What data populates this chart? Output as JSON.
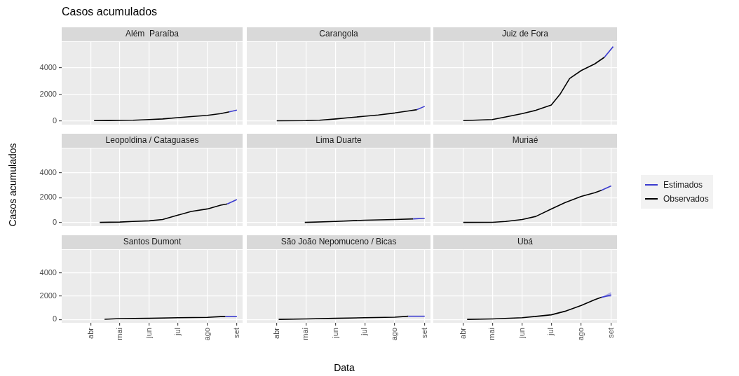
{
  "chart_data": [
    {
      "type": "line",
      "title": "Além  Paraíba",
      "annotations": [
        "Casos acumulados"
      ],
      "xlim": [
        "--03-01",
        "--09-07"
      ],
      "ylim": [
        -280,
        5950
      ],
      "yticks": [
        0,
        2000,
        4000
      ],
      "xticks": [
        {
          "value": "--04-01",
          "label": null
        },
        {
          "value": "--05-01",
          "label": null
        },
        {
          "value": "--06-01",
          "label": null
        },
        {
          "value": "--07-01",
          "label": null
        },
        {
          "value": "--08-01",
          "label": null
        },
        {
          "value": "--09-01",
          "label": null
        }
      ],
      "grid": true,
      "tick_labels": "y",
      "series": [
        {
          "color": "#3b3bcf",
          "x": [
            "--08-24",
            "--09-01"
          ],
          "values": [
            680,
            820
          ]
        },
        {
          "color": "#000000",
          "x": [
            "--04-04",
            "--04-20",
            "--05-01",
            "--05-15",
            "--06-01",
            "--06-15",
            "--07-01",
            "--07-15",
            "--08-01",
            "--08-15",
            "--08-24"
          ],
          "values": [
            20,
            30,
            40,
            50,
            100,
            150,
            250,
            330,
            420,
            550,
            680
          ]
        }
      ]
    },
    {
      "type": "line",
      "title": "Carangola",
      "xlim": [
        "--03-01",
        "--09-07"
      ],
      "ylim": [
        -280,
        5950
      ],
      "yticks": [
        {
          "value": 0,
          "label": null
        },
        {
          "value": 2000,
          "label": null
        },
        {
          "value": 4000,
          "label": null
        }
      ],
      "xticks": [
        {
          "value": "--04-01",
          "label": null
        },
        {
          "value": "--05-01",
          "label": null
        },
        {
          "value": "--06-01",
          "label": null
        },
        {
          "value": "--07-01",
          "label": null
        },
        {
          "value": "--08-01",
          "label": null
        },
        {
          "value": "--09-01",
          "label": null
        }
      ],
      "grid": true,
      "tick_labels": false,
      "series": [
        {
          "color": "#3b3bcf",
          "x": [
            "--08-24",
            "--09-01"
          ],
          "values": [
            850,
            1100
          ]
        },
        {
          "color": "#000000",
          "x": [
            "--04-01",
            "--05-01",
            "--05-15",
            "--06-01",
            "--06-15",
            "--07-01",
            "--07-15",
            "--08-01",
            "--08-15",
            "--08-24"
          ],
          "values": [
            10,
            20,
            50,
            150,
            250,
            350,
            450,
            600,
            750,
            850
          ]
        }
      ]
    },
    {
      "type": "line",
      "title": "Juiz de Fora",
      "xlim": [
        "--03-01",
        "--09-07"
      ],
      "ylim": [
        -280,
        5950
      ],
      "yticks": [
        {
          "value": 0,
          "label": null
        },
        {
          "value": 2000,
          "label": null
        },
        {
          "value": 4000,
          "label": null
        }
      ],
      "xticks": [
        {
          "value": "--04-01",
          "label": null
        },
        {
          "value": "--05-01",
          "label": null
        },
        {
          "value": "--06-01",
          "label": null
        },
        {
          "value": "--07-01",
          "label": null
        },
        {
          "value": "--08-01",
          "label": null
        },
        {
          "value": "--09-01",
          "label": null
        }
      ],
      "grid": true,
      "tick_labels": false,
      "series": [
        {
          "color": "#3b3bcf",
          "x": [
            "--08-25",
            "--09-03"
          ],
          "values": [
            4800,
            5600
          ]
        },
        {
          "color": "#000000",
          "x": [
            "--04-01",
            "--05-01",
            "--05-15",
            "--06-01",
            "--06-15",
            "--07-01",
            "--07-10",
            "--07-20",
            "--08-01",
            "--08-15",
            "--08-25"
          ],
          "values": [
            20,
            100,
            300,
            550,
            800,
            1200,
            2000,
            3200,
            3800,
            4300,
            4800
          ]
        }
      ]
    },
    {
      "type": "line",
      "title": "Leopoldina / Cataguases",
      "ylabel": "Casos acumulados",
      "xlim": [
        "--03-01",
        "--09-07"
      ],
      "ylim": [
        -280,
        5950
      ],
      "yticks": [
        0,
        2000,
        4000
      ],
      "xticks": [
        {
          "value": "--04-01",
          "label": null
        },
        {
          "value": "--05-01",
          "label": null
        },
        {
          "value": "--06-01",
          "label": null
        },
        {
          "value": "--07-01",
          "label": null
        },
        {
          "value": "--08-01",
          "label": null
        },
        {
          "value": "--09-01",
          "label": null
        }
      ],
      "grid": true,
      "tick_labels": "y",
      "series": [
        {
          "color": "#3b3bcf",
          "x": [
            "--08-22",
            "--09-01"
          ],
          "values": [
            1500,
            1850
          ]
        },
        {
          "color": "#000000",
          "x": [
            "--04-10",
            "--05-01",
            "--05-15",
            "--06-01",
            "--06-15",
            "--07-01",
            "--07-15",
            "--08-01",
            "--08-15",
            "--08-22"
          ],
          "values": [
            20,
            50,
            100,
            150,
            250,
            600,
            900,
            1100,
            1400,
            1500
          ]
        }
      ]
    },
    {
      "type": "line",
      "title": "Lima Duarte",
      "xlim": [
        "--03-01",
        "--09-07"
      ],
      "ylim": [
        -280,
        5950
      ],
      "yticks": [
        {
          "value": 0,
          "label": null
        },
        {
          "value": 2000,
          "label": null
        },
        {
          "value": 4000,
          "label": null
        }
      ],
      "xticks": [
        {
          "value": "--04-01",
          "label": null
        },
        {
          "value": "--05-01",
          "label": null
        },
        {
          "value": "--06-01",
          "label": null
        },
        {
          "value": "--07-01",
          "label": null
        },
        {
          "value": "--08-01",
          "label": null
        },
        {
          "value": "--09-01",
          "label": null
        }
      ],
      "grid": true,
      "tick_labels": false,
      "series": [
        {
          "color": "#3b3bcf",
          "x": [
            "--08-20",
            "--09-01"
          ],
          "values": [
            300,
            350
          ]
        },
        {
          "color": "#000000",
          "x": [
            "--04-30",
            "--06-01",
            "--07-01",
            "--08-01",
            "--08-20"
          ],
          "values": [
            20,
            100,
            200,
            250,
            300
          ]
        }
      ]
    },
    {
      "type": "line",
      "title": "Muriaé",
      "legend": "right",
      "xlim": [
        "--03-01",
        "--09-07"
      ],
      "ylim": [
        -280,
        5950
      ],
      "yticks": [
        {
          "value": 0,
          "label": null
        },
        {
          "value": 2000,
          "label": null
        },
        {
          "value": 4000,
          "label": null
        }
      ],
      "xticks": [
        {
          "value": "--04-01",
          "label": null
        },
        {
          "value": "--05-01",
          "label": null
        },
        {
          "value": "--06-01",
          "label": null
        },
        {
          "value": "--07-01",
          "label": null
        },
        {
          "value": "--08-01",
          "label": null
        },
        {
          "value": "--09-01",
          "label": null
        }
      ],
      "grid": true,
      "tick_labels": false,
      "series": [
        {
          "name": "Estimados",
          "color": "#3b3bcf",
          "x": [
            "--08-22",
            "--09-01"
          ],
          "values": [
            2600,
            2950
          ]
        },
        {
          "name": "Observados",
          "color": "#000000",
          "x": [
            "--04-01",
            "--05-01",
            "--05-15",
            "--06-01",
            "--06-15",
            "--07-01",
            "--07-15",
            "--08-01",
            "--08-15",
            "--08-22"
          ],
          "values": [
            20,
            30,
            100,
            250,
            500,
            1100,
            1600,
            2100,
            2400,
            2600
          ]
        }
      ]
    },
    {
      "type": "line",
      "title": "Santos Dumont",
      "xlim": [
        "--03-01",
        "--09-07"
      ],
      "ylim": [
        -280,
        5950
      ],
      "yticks": [
        0,
        2000,
        4000
      ],
      "xticks": [
        {
          "value": "--04-01",
          "label": "abr"
        },
        {
          "value": "--05-01",
          "label": "mai"
        },
        {
          "value": "--06-01",
          "label": "jun"
        },
        {
          "value": "--07-01",
          "label": "jul"
        },
        {
          "value": "--08-01",
          "label": "ago"
        },
        {
          "value": "--09-01",
          "label": "set"
        }
      ],
      "grid": true,
      "series": [
        {
          "color": "#3b3bcf",
          "x": [
            "--08-20",
            "--09-01"
          ],
          "values": [
            250,
            250
          ]
        },
        {
          "color": "#000000",
          "x": [
            "--04-15",
            "--05-01",
            "--06-01",
            "--07-01",
            "--08-01",
            "--08-15",
            "--08-20"
          ],
          "values": [
            20,
            80,
            100,
            150,
            180,
            250,
            250
          ]
        }
      ]
    },
    {
      "type": "line",
      "title": "São João Nepomuceno / Bicas",
      "xlabel": "Data",
      "xlim": [
        "--03-01",
        "--09-07"
      ],
      "ylim": [
        -280,
        5950
      ],
      "yticks": [
        {
          "value": 0,
          "label": null
        },
        {
          "value": 2000,
          "label": null
        },
        {
          "value": 4000,
          "label": null
        }
      ],
      "xticks": [
        {
          "value": "--04-01",
          "label": "abr"
        },
        {
          "value": "--05-01",
          "label": "mai"
        },
        {
          "value": "--06-01",
          "label": "jun"
        },
        {
          "value": "--07-01",
          "label": "jul"
        },
        {
          "value": "--08-01",
          "label": "ago"
        },
        {
          "value": "--09-01",
          "label": "set"
        }
      ],
      "grid": true,
      "tick_labels": "x",
      "series": [
        {
          "color": "#3b3bcf",
          "x": [
            "--08-15",
            "--09-01"
          ],
          "values": [
            280,
            280
          ]
        },
        {
          "color": "#000000",
          "x": [
            "--04-03",
            "--05-01",
            "--06-01",
            "--07-01",
            "--08-01",
            "--08-15"
          ],
          "values": [
            10,
            50,
            100,
            150,
            200,
            280
          ]
        }
      ]
    },
    {
      "type": "line",
      "title": "Ubá",
      "xlim": [
        "--03-01",
        "--09-07"
      ],
      "ylim": [
        -280,
        5950
      ],
      "yticks": [
        {
          "value": 0,
          "label": null
        },
        {
          "value": 2000,
          "label": null
        },
        {
          "value": 4000,
          "label": null
        }
      ],
      "xticks": [
        {
          "value": "--04-01",
          "label": "abr"
        },
        {
          "value": "--05-01",
          "label": "mai"
        },
        {
          "value": "--06-01",
          "label": "jun"
        },
        {
          "value": "--07-01",
          "label": "jul"
        },
        {
          "value": "--08-01",
          "label": "ago"
        },
        {
          "value": "--09-01",
          "label": "set"
        }
      ],
      "grid": true,
      "tick_labels": "x",
      "series": [
        {
          "color": "#3b3bcf",
          "x": [
            "--08-22",
            "--09-01"
          ],
          "values": [
            1900,
            2100
          ],
          "lower": [
            1900,
            1950
          ],
          "upper": [
            1900,
            2350
          ]
        },
        {
          "color": "#000000",
          "x": [
            "--04-05",
            "--05-01",
            "--06-01",
            "--07-01",
            "--07-15",
            "--08-01",
            "--08-15",
            "--08-22"
          ],
          "values": [
            10,
            50,
            150,
            400,
            700,
            1200,
            1700,
            1900
          ]
        }
      ]
    }
  ]
}
